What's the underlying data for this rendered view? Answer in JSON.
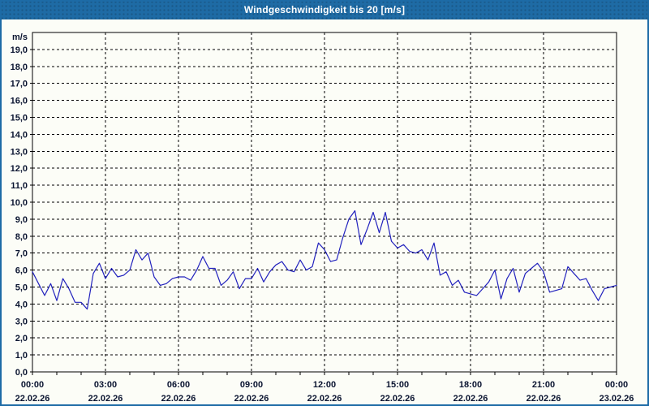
{
  "window": {
    "title": "Windgeschwindigkeit bis 20 [m/s]"
  },
  "colors": {
    "header_bg": "#1e6ba5",
    "page_border": "#1d6ba6",
    "page_bg": "#fcfdf7",
    "title_text": "#ffffff",
    "grid": "#000000",
    "axis": "#000000",
    "tick_label": "#0a1430",
    "series_line": "#2121bd"
  },
  "chart_data": {
    "type": "line",
    "title": "Windgeschwindigkeit bis 20 [m/s]",
    "unit_label": "m/s",
    "ylim": [
      0,
      20
    ],
    "ytick_step": 1,
    "ytick_labels_from": 0,
    "ytick_labels_to": 19,
    "decimal_separator": ",",
    "x_span_hours": 24,
    "x_major_step_hours": 3,
    "x_minor_step_hours": 1,
    "grid_style": "dashed",
    "legend": "none",
    "xticks": [
      {
        "time": "00:00",
        "date": "22.02.26"
      },
      {
        "time": "03:00",
        "date": "22.02.26"
      },
      {
        "time": "06:00",
        "date": "22.02.26"
      },
      {
        "time": "09:00",
        "date": "22.02.26"
      },
      {
        "time": "12:00",
        "date": "22.02.26"
      },
      {
        "time": "15:00",
        "date": "22.02.26"
      },
      {
        "time": "18:00",
        "date": "22.02.26"
      },
      {
        "time": "21:00",
        "date": "22.02.26"
      },
      {
        "time": "00:00",
        "date": "23.02.26"
      }
    ],
    "series": [
      {
        "name": "Windgeschwindigkeit",
        "unit": "m/s",
        "color": "#2121bd",
        "sample_interval_minutes": 15,
        "values": [
          5.9,
          5.2,
          4.5,
          5.2,
          4.2,
          5.5,
          4.9,
          4.1,
          4.1,
          3.7,
          5.8,
          6.4,
          5.5,
          6.1,
          5.6,
          5.7,
          6.0,
          7.2,
          6.6,
          7.0,
          5.6,
          5.1,
          5.2,
          5.5,
          5.6,
          5.6,
          5.4,
          6.0,
          6.8,
          6.1,
          6.1,
          5.1,
          5.4,
          5.9,
          4.9,
          5.5,
          5.5,
          6.1,
          5.3,
          5.9,
          6.3,
          6.5,
          6.0,
          5.9,
          6.6,
          6.0,
          6.2,
          7.6,
          7.2,
          6.5,
          6.6,
          7.9,
          9.0,
          9.5,
          7.5,
          8.4,
          9.4,
          8.2,
          9.4,
          7.7,
          7.3,
          7.5,
          7.1,
          7.0,
          7.2,
          6.6,
          7.6,
          5.7,
          5.9,
          5.1,
          5.4,
          4.7,
          4.6,
          4.5,
          4.9,
          5.3,
          6.0,
          4.3,
          5.5,
          6.1,
          4.7,
          5.8,
          6.1,
          6.4,
          5.9,
          4.7,
          4.8,
          4.9,
          6.2,
          5.8,
          5.4,
          5.5,
          4.8,
          4.2,
          4.9,
          5.0,
          5.1
        ]
      }
    ]
  }
}
